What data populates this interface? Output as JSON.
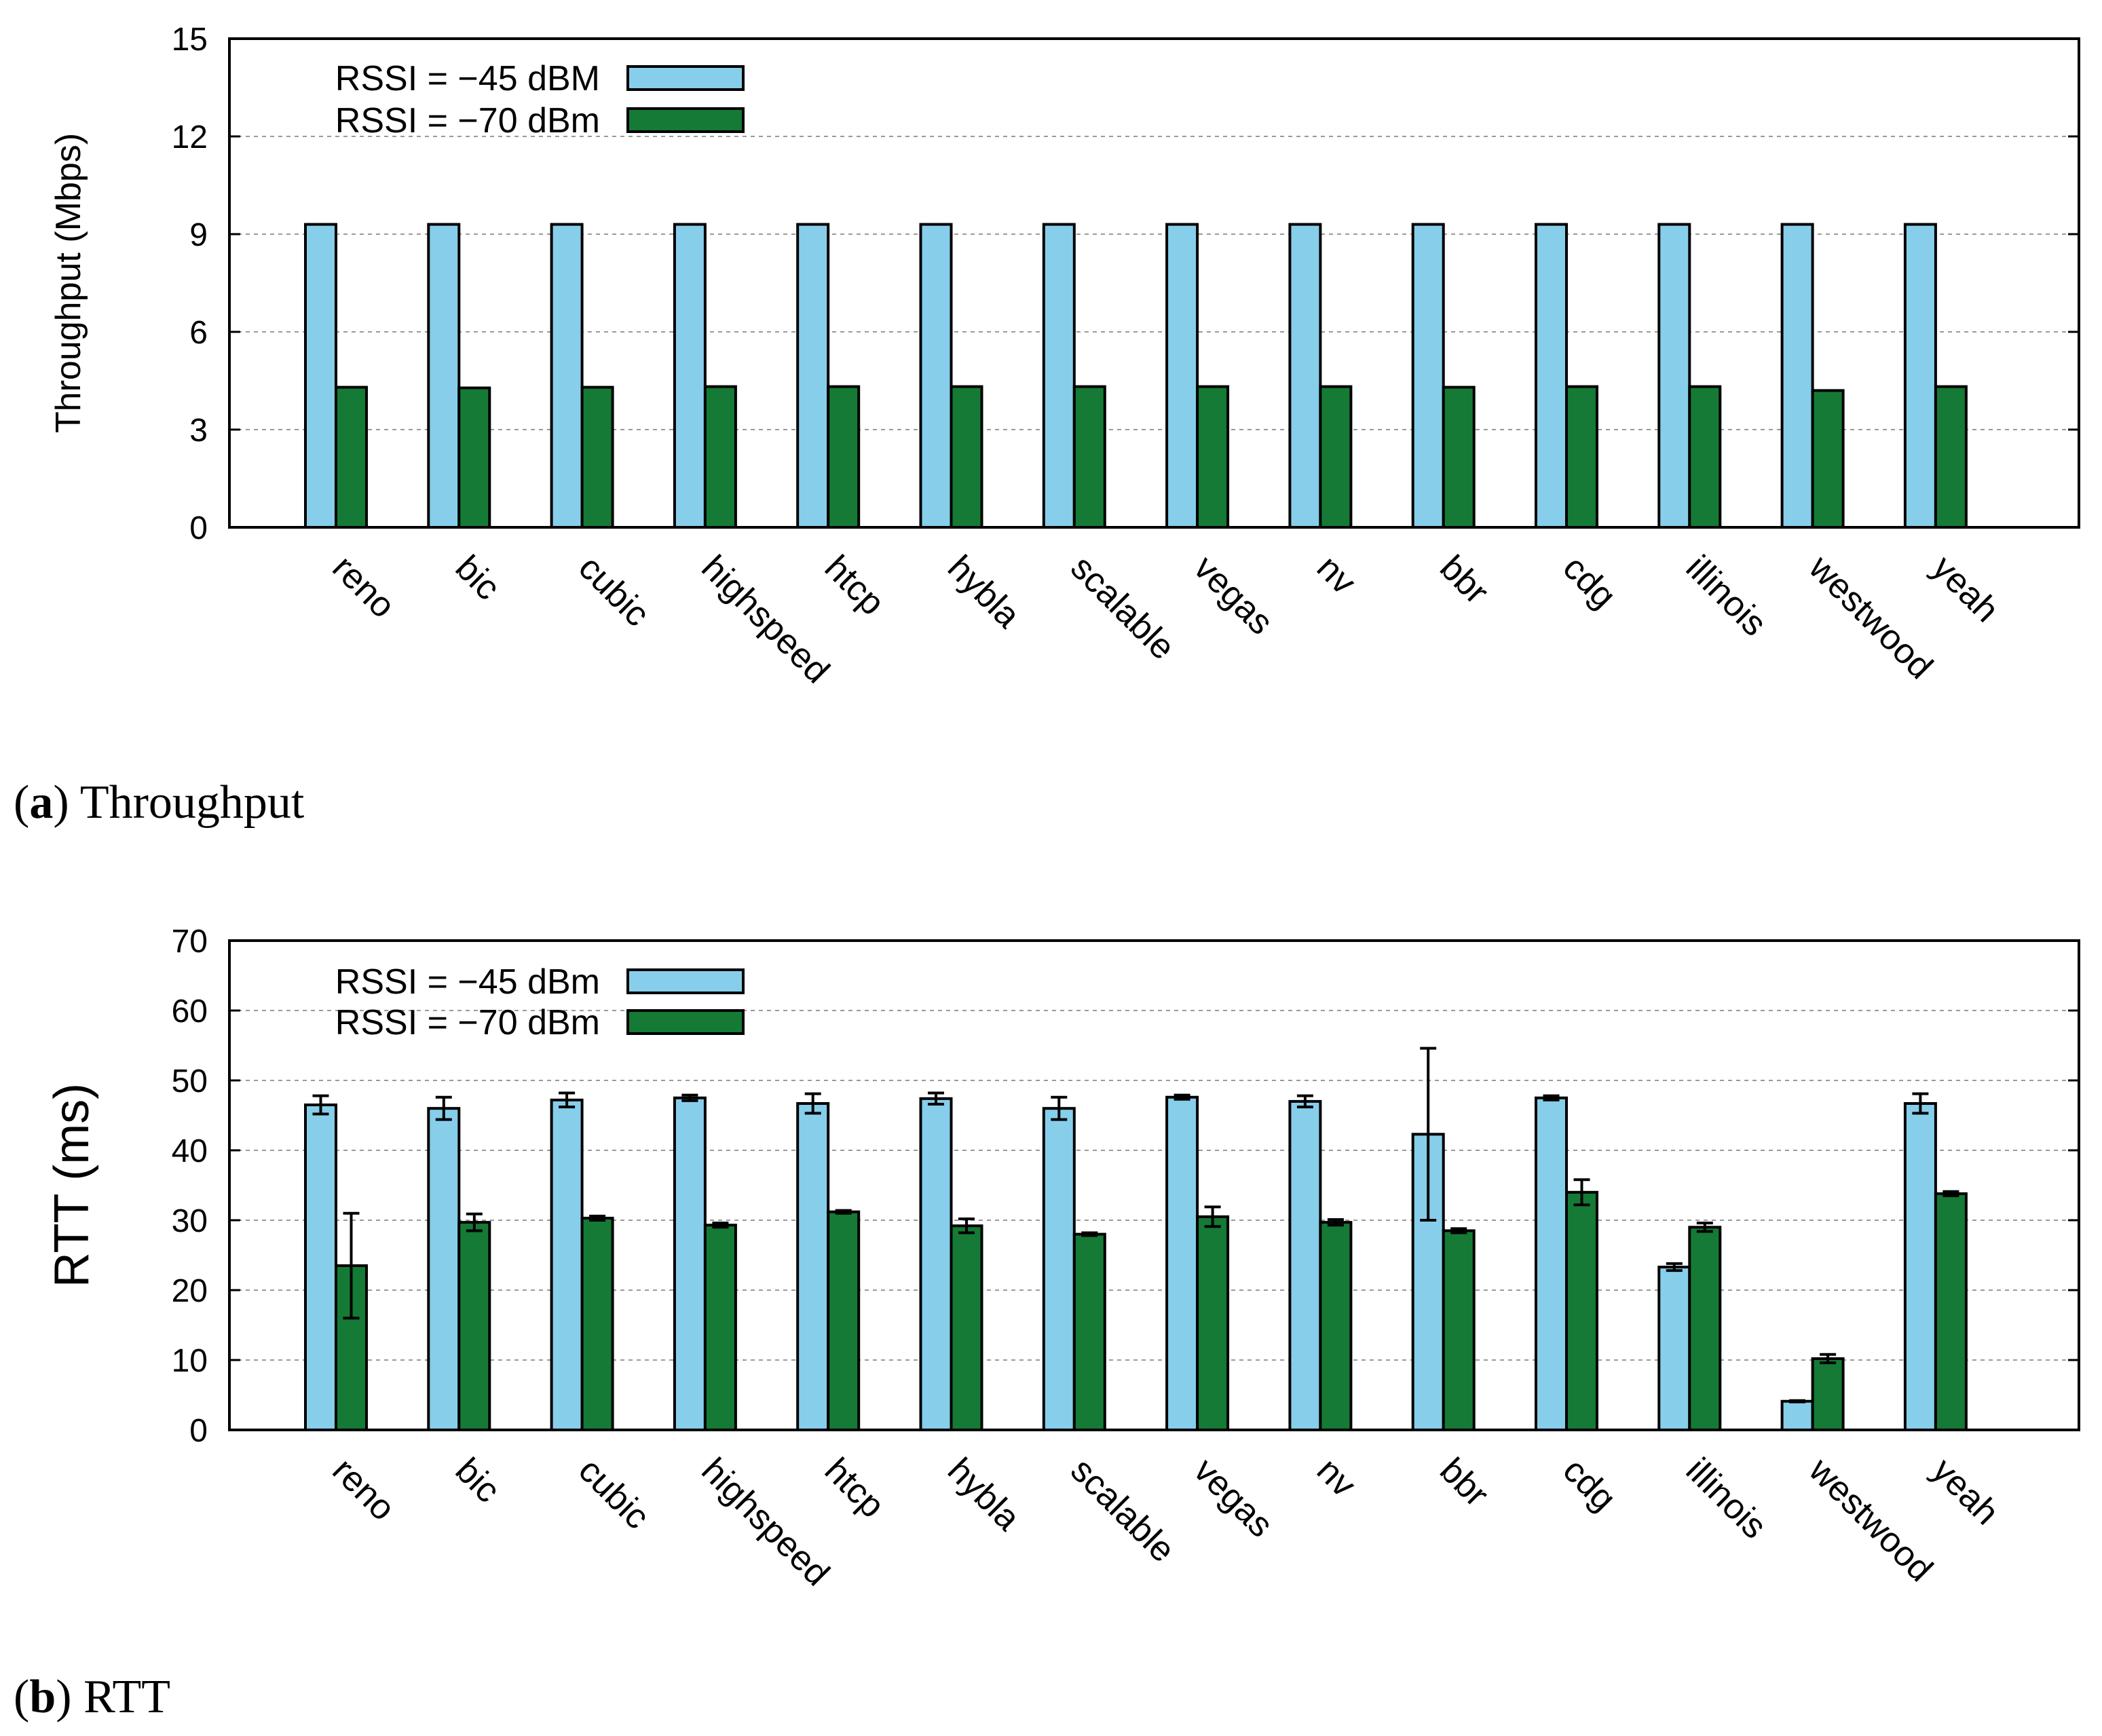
{
  "colors": {
    "rssi_45": "#87ceeb",
    "rssi_70": "#157a35"
  },
  "chart_data": [
    {
      "type": "bar",
      "caption_letter": "a",
      "caption_text": "Throughput",
      "ylabel": "Throughput (Mbps)",
      "ylim": [
        0,
        15
      ],
      "yticks": [
        0,
        3,
        6,
        9,
        12,
        15
      ],
      "grid": true,
      "legend_position": "top-left",
      "categories": [
        "reno",
        "bic",
        "cubic",
        "highspeed",
        "htcp",
        "hybla",
        "scalable",
        "vegas",
        "nv",
        "bbr",
        "cdg",
        "illinois",
        "westwood",
        "yeah"
      ],
      "series": [
        {
          "name": "RSSI = −45 dBM",
          "color_key": "rssi_45",
          "values": [
            9.3,
            9.3,
            9.3,
            9.3,
            9.3,
            9.3,
            9.3,
            9.3,
            9.3,
            9.3,
            9.3,
            9.3,
            9.3,
            9.3
          ]
        },
        {
          "name": "RSSI = −70 dBm",
          "color_key": "rssi_70",
          "values": [
            4.3,
            4.28,
            4.3,
            4.32,
            4.32,
            4.32,
            4.32,
            4.32,
            4.32,
            4.3,
            4.32,
            4.32,
            4.2,
            4.32
          ]
        }
      ]
    },
    {
      "type": "bar",
      "caption_letter": "b",
      "caption_text": "RTT",
      "ylabel": "RTT (ms)",
      "ylim": [
        0,
        70
      ],
      "yticks": [
        0,
        10,
        20,
        30,
        40,
        50,
        60,
        70
      ],
      "grid": true,
      "legend_position": "top-left",
      "categories": [
        "reno",
        "bic",
        "cubic",
        "highspeed",
        "htcp",
        "hybla",
        "scalable",
        "vegas",
        "nv",
        "bbr",
        "cdg",
        "illinois",
        "westwood",
        "yeah"
      ],
      "series": [
        {
          "name": "RSSI = −45 dBm",
          "color_key": "rssi_45",
          "values": [
            46.5,
            46,
            47.2,
            47.5,
            46.7,
            47.4,
            46,
            47.6,
            47,
            42.3,
            47.5,
            23.3,
            4.1,
            46.7
          ],
          "errors": [
            1.3,
            1.6,
            1.0,
            0.4,
            1.4,
            0.8,
            1.6,
            0.3,
            0.8,
            12.3,
            0.3,
            0.5,
            0.1,
            1.4
          ]
        },
        {
          "name": "RSSI = −70 dBm",
          "color_key": "rssi_70",
          "values": [
            23.5,
            29.7,
            30.3,
            29.3,
            31.2,
            29.2,
            28,
            30.5,
            29.7,
            28.5,
            34,
            29,
            10.2,
            33.8
          ],
          "errors": [
            7.5,
            1.2,
            0.3,
            0.3,
            0.2,
            1.0,
            0.2,
            1.4,
            0.4,
            0.3,
            1.8,
            0.6,
            0.6,
            0.3
          ]
        }
      ]
    }
  ]
}
